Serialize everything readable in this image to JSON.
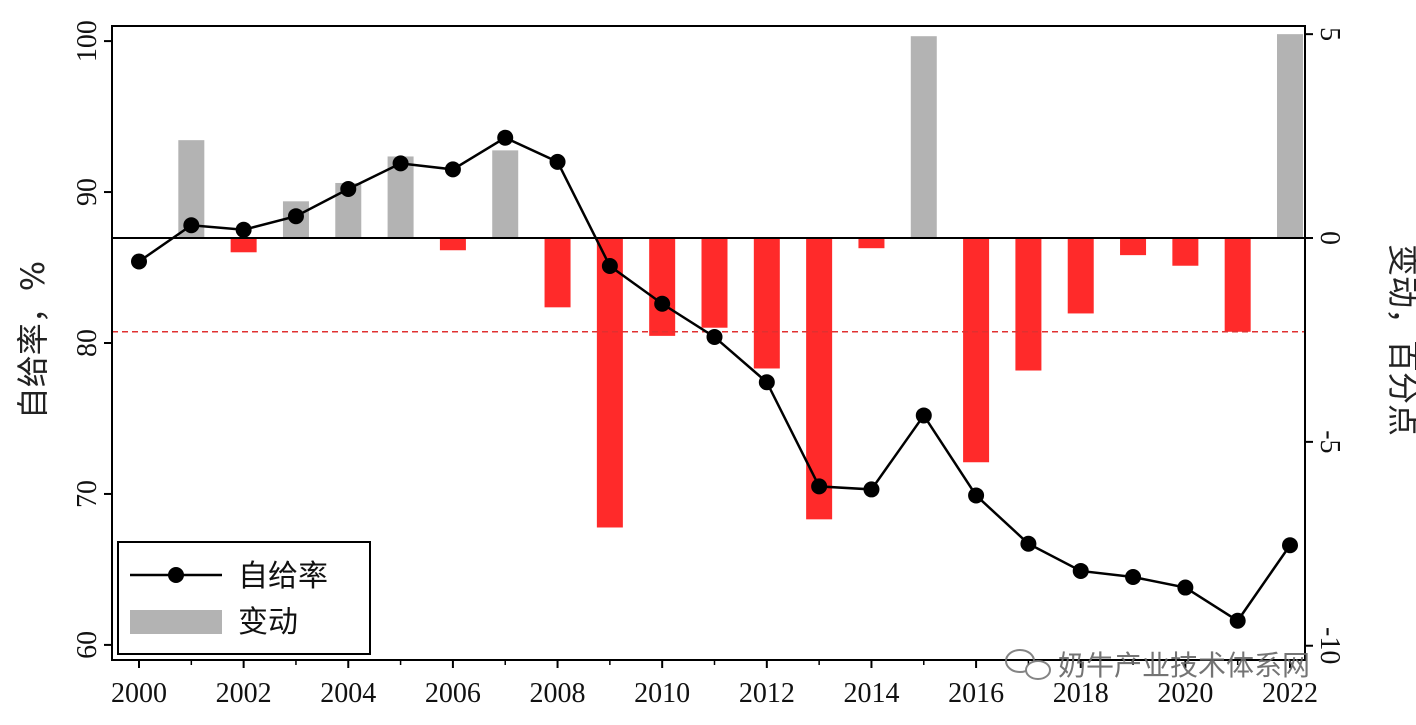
{
  "chart_data": {
    "type": "bar+line",
    "x": [
      2000,
      2001,
      2002,
      2003,
      2004,
      2005,
      2006,
      2007,
      2008,
      2009,
      2010,
      2011,
      2012,
      2013,
      2014,
      2015,
      2016,
      2017,
      2018,
      2019,
      2020,
      2021,
      2022
    ],
    "x_tick_labels": [
      "2000",
      "2002",
      "2004",
      "2006",
      "2008",
      "2010",
      "2012",
      "2014",
      "2016",
      "2018",
      "2020",
      "2022"
    ],
    "ylabel_left": "自给率，%",
    "ylabel_right": "变动，百分点",
    "ylim_left": [
      59,
      101
    ],
    "ylim_right": [
      -10.35,
      5.2
    ],
    "yticks_left": [
      "60",
      "70",
      "80",
      "90",
      "100"
    ],
    "yticks_right": [
      "-10",
      "-5",
      "0",
      "5"
    ],
    "reference_line_right": -2.3,
    "series": [
      {
        "name": "自给率",
        "type": "line",
        "axis": "left",
        "color": "#000000",
        "values": [
          85.4,
          87.8,
          87.5,
          88.4,
          90.2,
          91.9,
          91.5,
          93.6,
          92.0,
          85.1,
          82.6,
          80.4,
          77.4,
          70.5,
          70.3,
          75.2,
          69.9,
          66.7,
          64.9,
          64.5,
          63.8,
          61.6,
          66.6
        ]
      },
      {
        "name": "变动",
        "type": "bar",
        "axis": "right",
        "color_positive": "#b3b3b3",
        "color_negative": "#ff2a2a",
        "values": [
          null,
          2.4,
          -0.35,
          0.9,
          1.35,
          2.0,
          -0.3,
          2.15,
          -1.7,
          -7.1,
          -2.4,
          -2.2,
          -3.2,
          -6.9,
          -0.25,
          4.95,
          -5.5,
          -3.25,
          -1.85,
          -0.42,
          -0.68,
          -2.3,
          5.0
        ]
      }
    ],
    "legend": {
      "placement": "bottom-left",
      "entries": [
        "自给率",
        "变动"
      ]
    }
  },
  "watermark": {
    "text": "奶牛产业技术体系网",
    "icon": "wechat-icon"
  }
}
